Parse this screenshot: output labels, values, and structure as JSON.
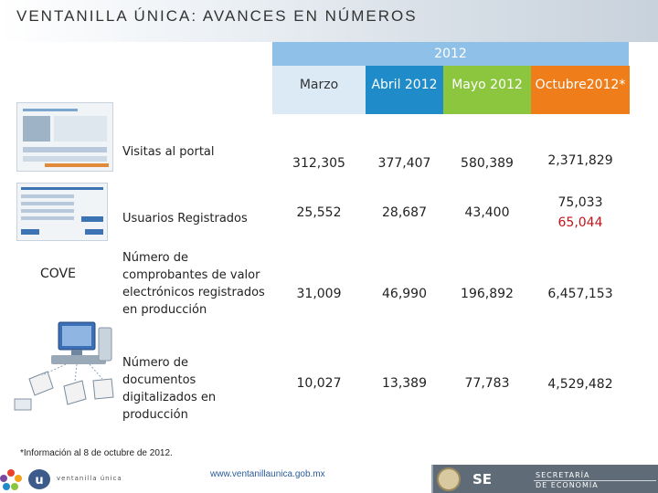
{
  "title": "VENTANILLA ÚNICA: AVANCES EN NÚMEROS",
  "table": {
    "year": "2012",
    "columns": [
      "Marzo",
      "Abril 2012",
      "Mayo  2012",
      "Octubre2012*"
    ],
    "column_colors": [
      "#dceaf6",
      "#1f8bc9",
      "#8cc63f",
      "#ef7d1a"
    ],
    "rows": [
      {
        "label": "Visitas al portal",
        "values": [
          "312,305",
          "377,407",
          "580,389",
          "2,371,829"
        ]
      },
      {
        "label": "Usuarios Registrados",
        "values": [
          "25,552",
          "28,687",
          "43,400",
          "75,033"
        ],
        "extra": "65,044"
      },
      {
        "label": "Número de comprobantes de valor electrónicos registrados en producción",
        "values": [
          "31,009",
          "46,990",
          "196,892",
          "6,457,153"
        ]
      },
      {
        "label": "Número de documentos digitalizados en producción",
        "values": [
          "10,027",
          "13,389",
          "77,783",
          "4,529,482"
        ]
      }
    ]
  },
  "side_label": "COVE",
  "footnote": "*Información al 8 de octubre de 2012.",
  "footer": {
    "url": "www.ventanillaunica.gob.mx",
    "logo_text": "ventanilla única",
    "agency_short": "SE",
    "agency_line1": "SECRETARÍA",
    "agency_line2": "DE ECONOMÍA"
  }
}
